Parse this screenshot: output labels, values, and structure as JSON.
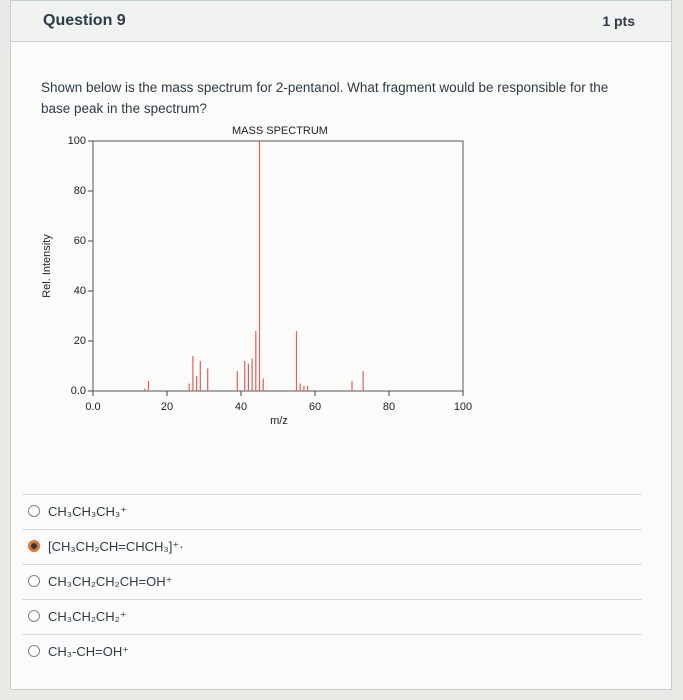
{
  "header": {
    "title": "Question 9",
    "points": "1 pts"
  },
  "question": "Shown below is the mass spectrum for 2-pentanol. What fragment would be responsible for the base peak in the spectrum?",
  "chart_data": {
    "type": "bar",
    "title": "MASS SPECTRUM",
    "x_label": "m/z",
    "y_label": "Rel. Intensity",
    "x": [
      14,
      15,
      26,
      27,
      28,
      29,
      31,
      39,
      41,
      42,
      43,
      44,
      45,
      46,
      55,
      56,
      57,
      58,
      70,
      73
    ],
    "values": [
      1,
      4,
      3,
      14,
      6,
      12,
      9,
      8,
      12,
      11,
      13,
      24,
      100,
      5,
      24,
      3,
      2,
      2,
      4,
      8
    ],
    "color": "#e06060",
    "xlim": [
      0,
      100
    ],
    "xticks": [
      {
        "value": 0,
        "label": "0.0"
      },
      20,
      40,
      60,
      80,
      100
    ],
    "ylim": [
      0,
      100
    ],
    "yticks": [
      {
        "value": 0,
        "label": "0.0"
      },
      20,
      40,
      60,
      80,
      100
    ]
  },
  "answers": [
    "CH₃CH₃CH₃⁺",
    "[CH₃CH₂CH=CHCH₃]⁺·",
    "CH₃CH₂CH₂CH=OH⁺",
    "CH₃CH₂CH₂⁺",
    "CH₃-CH=OH⁺"
  ],
  "selected": 1
}
